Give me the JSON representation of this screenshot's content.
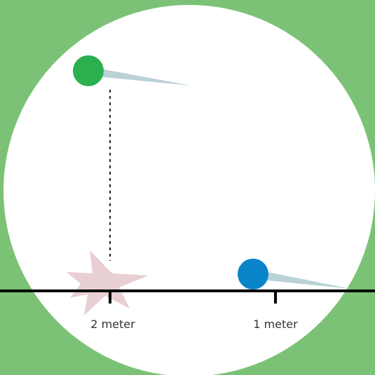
{
  "ticks": [
    {
      "label": "2 meter"
    },
    {
      "label": "1 meter"
    }
  ]
}
